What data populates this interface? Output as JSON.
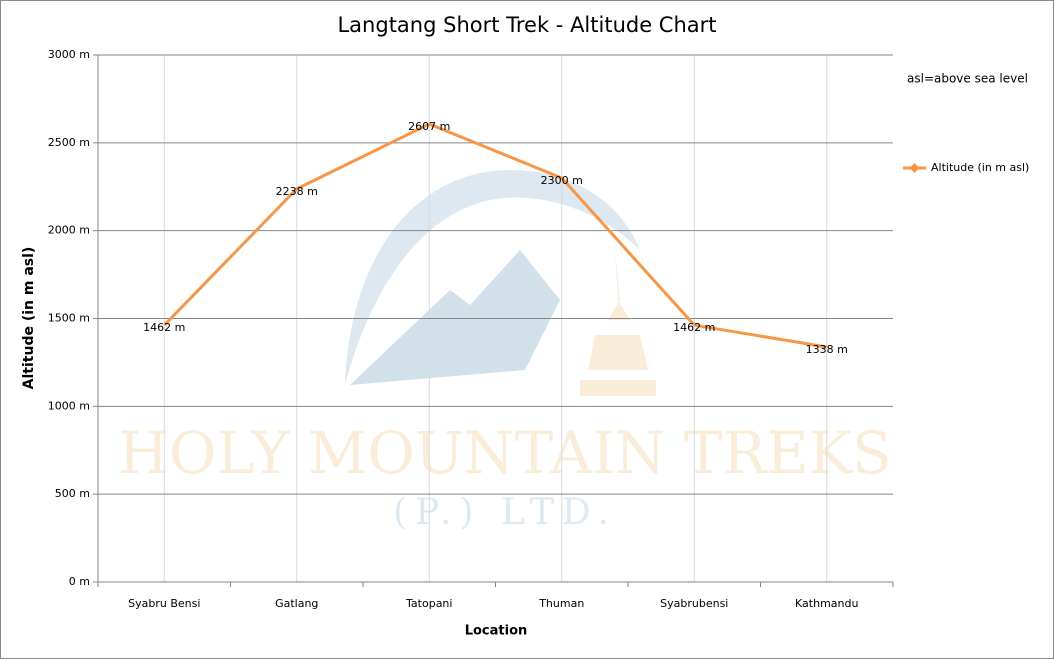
{
  "chart_data": {
    "type": "line",
    "title": "Langtang Short Trek - Altitude Chart",
    "x_label": "Location",
    "y_label": "Altitude (in m asl)",
    "annotation": "asl=above sea level",
    "watermark": {
      "title": "HOLY MOUNTAIN TREKS",
      "subtitle": "(P.) LTD."
    },
    "categories": [
      "Syabru Bensi",
      "Gatlang",
      "Tatopani",
      "Thuman",
      "Syabrubensi",
      "Kathmandu"
    ],
    "series": [
      {
        "name": "Altitude (in m asl)",
        "color": "#f79646",
        "values": [
          1462,
          2238,
          2607,
          2300,
          1462,
          1338
        ],
        "value_labels": [
          "1462 m",
          "2238 m",
          "2607 m",
          "2300 m",
          "1462 m",
          "1338 m"
        ]
      }
    ],
    "ylim": [
      0,
      3000
    ],
    "yticks": [
      {
        "value": 0,
        "label": "0 m"
      },
      {
        "value": 500,
        "label": "500 m"
      },
      {
        "value": 1000,
        "label": "1000 m"
      },
      {
        "value": 1500,
        "label": "1500 m"
      },
      {
        "value": 2000,
        "label": "2000 m"
      },
      {
        "value": 2500,
        "label": "2500 m"
      },
      {
        "value": 3000,
        "label": "3000 m"
      }
    ],
    "grid": true,
    "legend": "right"
  }
}
